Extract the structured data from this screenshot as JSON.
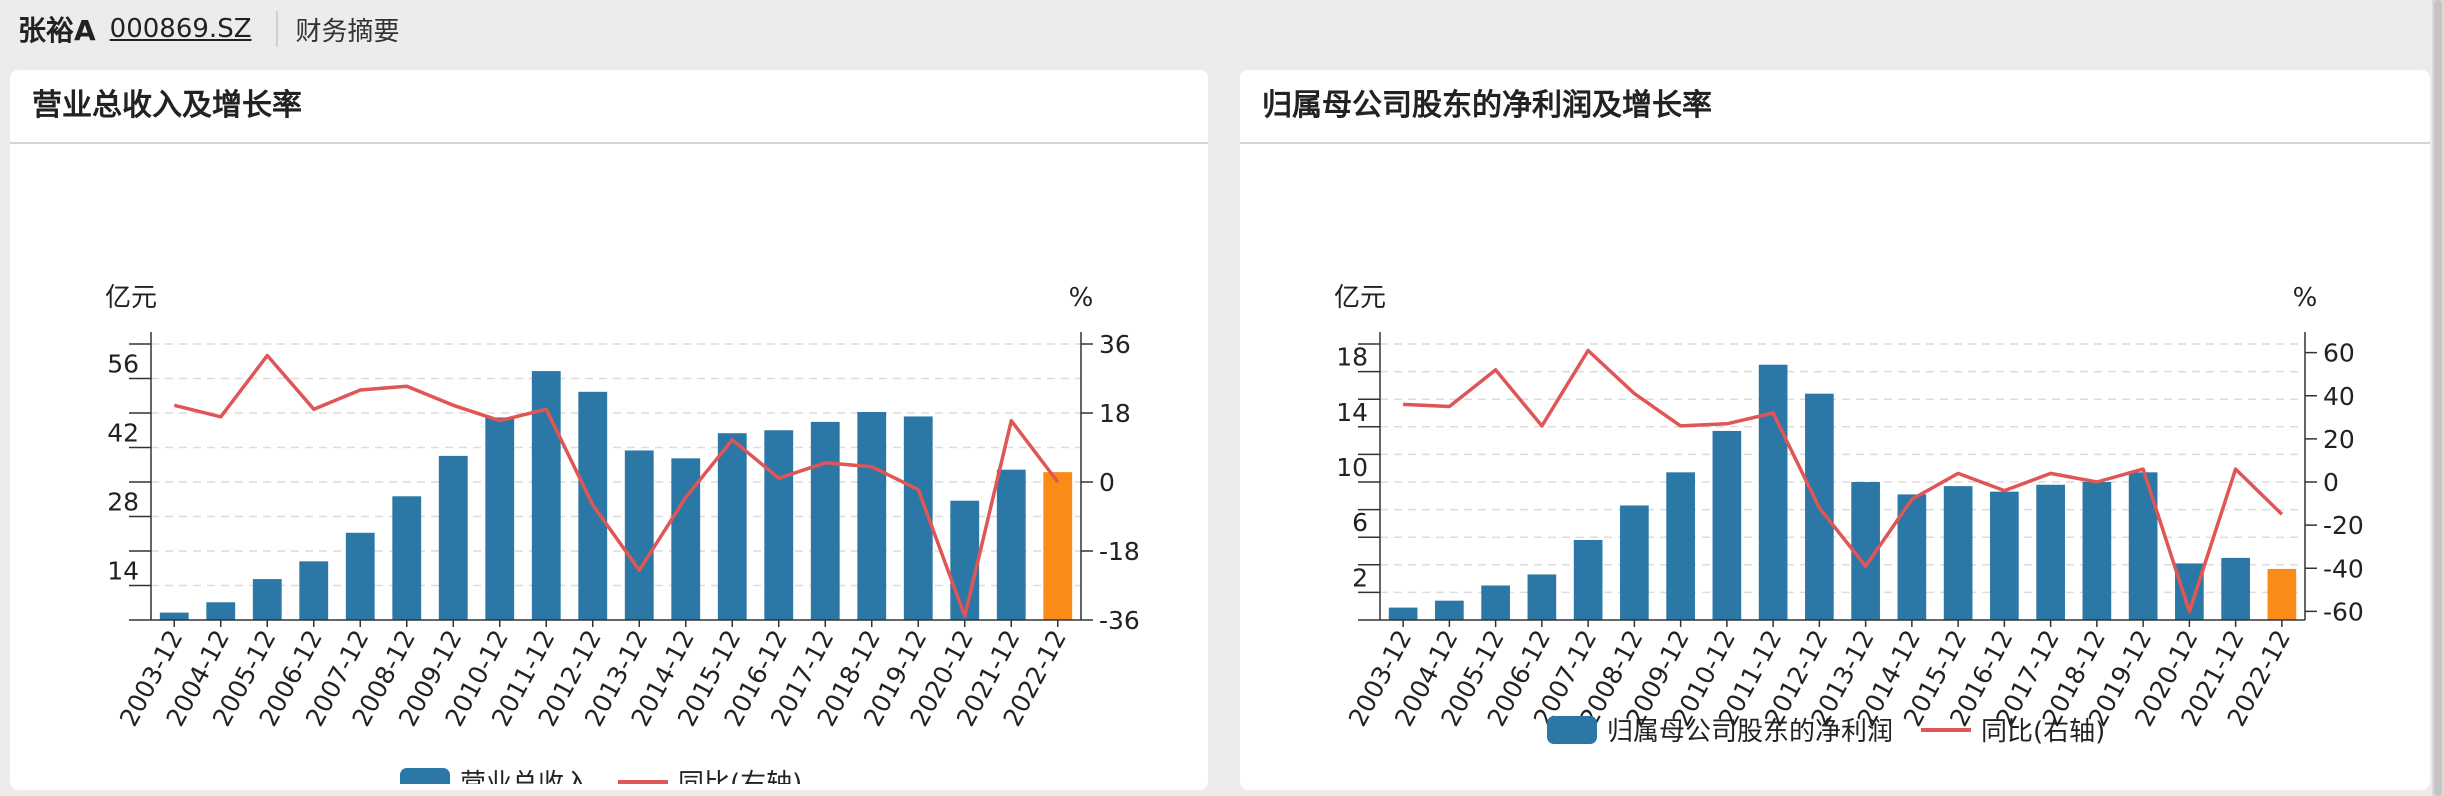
{
  "header": {
    "stock_name": "张裕A",
    "stock_code": "000869.SZ",
    "section": "财务摘要"
  },
  "colors": {
    "bar": "#2b77a5",
    "bar_highlight": "#f98b19",
    "line": "#e05555"
  },
  "chart_data": [
    {
      "type": "bar",
      "title": "营业总收入及增长率",
      "categories": [
        "2003-12",
        "2004-12",
        "2005-12",
        "2006-12",
        "2007-12",
        "2008-12",
        "2009-12",
        "2010-12",
        "2011-12",
        "2012-12",
        "2013-12",
        "2014-12",
        "2015-12",
        "2016-12",
        "2017-12",
        "2018-12",
        "2019-12",
        "2020-12",
        "2021-12",
        "2022-12"
      ],
      "series": [
        {
          "name": "营业总收入",
          "type": "bar",
          "axis": "left",
          "values": [
            8.5,
            10.6,
            15.3,
            18.9,
            24.7,
            32.1,
            40.3,
            48.1,
            57.5,
            53.3,
            41.4,
            39.8,
            44.9,
            45.5,
            47.2,
            49.2,
            48.3,
            31.2,
            37.5,
            37.0
          ]
        },
        {
          "name": "同比(右轴)",
          "type": "line",
          "axis": "right",
          "values": [
            20,
            17,
            33,
            19,
            24,
            25,
            20,
            16,
            19,
            -6,
            -23,
            -4,
            11,
            1,
            5,
            4,
            -2,
            -35,
            16,
            0
          ]
        }
      ],
      "highlight_last": true,
      "y_left": {
        "label": "亿元",
        "min": 7,
        "max": 63,
        "ticks": [
          14,
          28,
          42,
          56
        ]
      },
      "y_right": {
        "label": "%",
        "min": -36,
        "max": 36,
        "ticks": [
          36,
          18,
          0,
          -18,
          -36
        ]
      },
      "grid": true,
      "legend": "bottom"
    },
    {
      "type": "bar",
      "title": "归属母公司股东的净利润及增长率",
      "categories": [
        "2003-12",
        "2004-12",
        "2005-12",
        "2006-12",
        "2007-12",
        "2008-12",
        "2009-12",
        "2010-12",
        "2011-12",
        "2012-12",
        "2013-12",
        "2014-12",
        "2015-12",
        "2016-12",
        "2017-12",
        "2018-12",
        "2019-12",
        "2020-12",
        "2021-12",
        "2022-12"
      ],
      "series": [
        {
          "name": "归属母公司股东的净利润",
          "type": "bar",
          "axis": "left",
          "values": [
            0.9,
            1.4,
            2.5,
            3.3,
            5.8,
            8.3,
            10.7,
            13.7,
            18.5,
            16.4,
            10.0,
            9.1,
            9.7,
            9.3,
            9.8,
            10.0,
            10.7,
            4.1,
            4.5,
            3.7
          ]
        },
        {
          "name": "同比(右轴)",
          "type": "line",
          "axis": "right",
          "values": [
            36,
            35,
            52,
            26,
            61,
            41,
            26,
            27,
            32,
            -12,
            -39,
            -8,
            4,
            -4,
            4,
            0,
            6,
            -60,
            6,
            -15
          ]
        }
      ],
      "highlight_last": true,
      "y_left": {
        "label": "亿元",
        "min": 0,
        "max": 20,
        "ticks": [
          2,
          6,
          10,
          14,
          18
        ]
      },
      "y_right": {
        "label": "%",
        "min": -64,
        "max": 64,
        "ticks": [
          60,
          40,
          20,
          0,
          -20,
          -40,
          -60
        ]
      },
      "grid": true,
      "legend": "bottom"
    }
  ]
}
